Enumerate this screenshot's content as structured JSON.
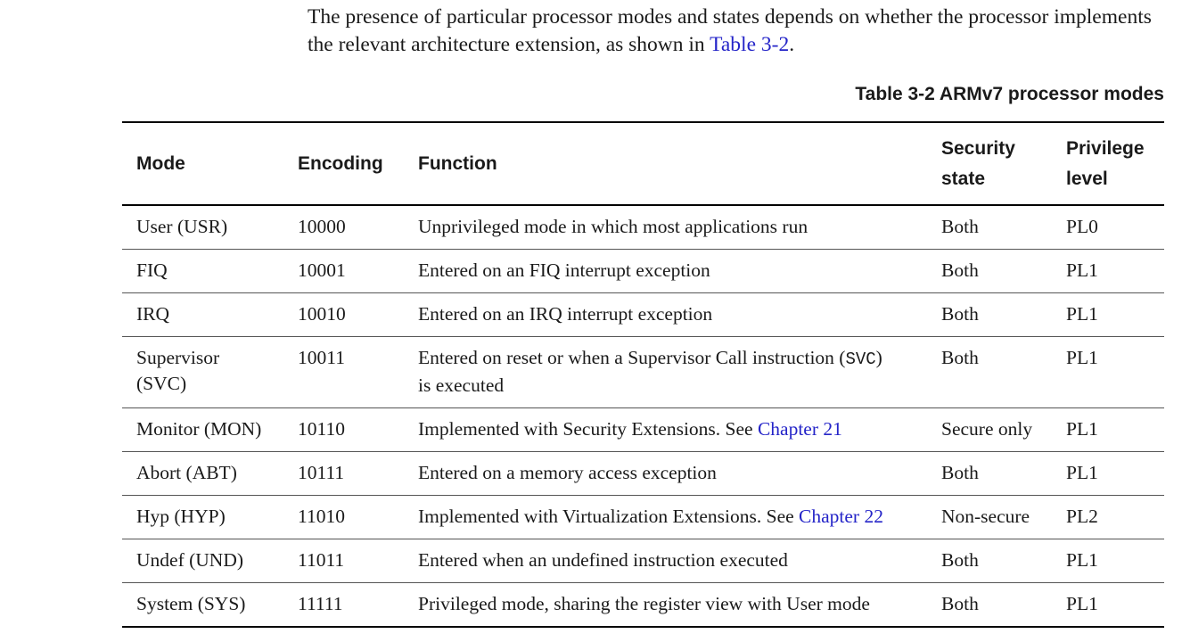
{
  "intro": {
    "text": "The presence of particular processor modes and states depends on whether the processor implements the relevant architecture extension, as shown in ",
    "link": "Table 3-2",
    "tail": "."
  },
  "table": {
    "caption": "Table 3-2 ARMv7 processor modes",
    "headers": {
      "mode": "Mode",
      "encoding": "Encoding",
      "function": "Function",
      "security_line1": "Security",
      "security_line2": "state",
      "privilege_line1": "Privilege",
      "privilege_line2": "level"
    },
    "rows": [
      {
        "mode": "User (USR)",
        "encoding": "10000",
        "function": "Unprivileged mode in which most applications run",
        "security": "Both",
        "privilege": "PL0"
      },
      {
        "mode": "FIQ",
        "encoding": "10001",
        "function": "Entered on an FIQ interrupt exception",
        "security": "Both",
        "privilege": "PL1"
      },
      {
        "mode": "IRQ",
        "encoding": "10010",
        "function": "Entered on an IRQ interrupt exception",
        "security": "Both",
        "privilege": "PL1"
      },
      {
        "mode_line1": "Supervisor",
        "mode_line2": "(SVC)",
        "encoding": "10011",
        "function_pre": "Entered on reset or when a Supervisor Call instruction (",
        "function_code": "SVC",
        "function_post": ")",
        "function_line2": "is executed",
        "security": "Both",
        "privilege": "PL1"
      },
      {
        "mode": "Monitor (MON)",
        "encoding": "10110",
        "function": "Implemented with Security Extensions. See ",
        "function_link": "Chapter 21",
        "security": "Secure only",
        "privilege": "PL1"
      },
      {
        "mode": "Abort (ABT)",
        "encoding": "10111",
        "function": "Entered on a memory access exception",
        "security": "Both",
        "privilege": "PL1"
      },
      {
        "mode": "Hyp (HYP)",
        "encoding": "11010",
        "function": "Implemented with Virtualization Extensions. See ",
        "function_link": "Chapter 22",
        "security": "Non-secure",
        "privilege": "PL2"
      },
      {
        "mode": "Undef (UND)",
        "encoding": "11011",
        "function": "Entered when an undefined instruction executed",
        "security": "Both",
        "privilege": "PL1"
      },
      {
        "mode": "System (SYS)",
        "encoding": "11111",
        "function": "Privileged mode, sharing the register view with User mode",
        "security": "Both",
        "privilege": "PL1"
      }
    ]
  },
  "colors": {
    "link": "#2424c8",
    "text": "#1a1a1a",
    "rule": "#000000"
  }
}
